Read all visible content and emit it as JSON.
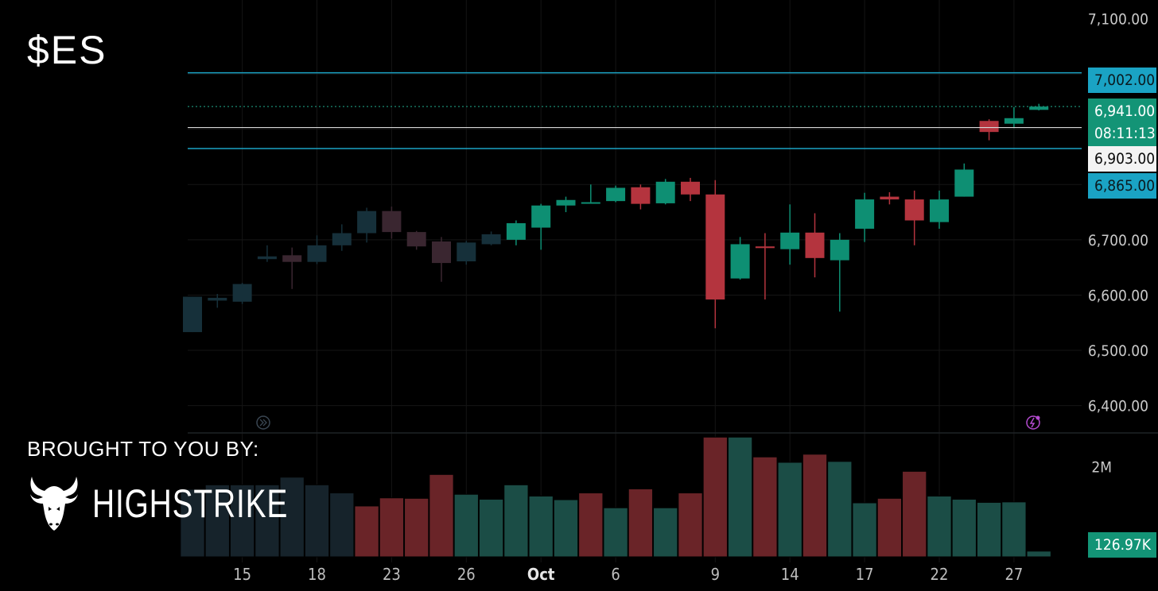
{
  "ticker": "$ES",
  "sponsor": {
    "brought_label": "BROUGHT TO YOU BY:",
    "brand_name": "HIGHSTRIKE"
  },
  "colors": {
    "up": "#0e8f73",
    "down": "#b4343e",
    "line_cyan": "#1aa3c4",
    "grid": "#151515"
  },
  "price_tags": {
    "level_high": "7,002.00",
    "last_price": "6,941.00",
    "countdown": "08:11:13",
    "level_white": "6,903.00",
    "level_low": "6,865.00",
    "volume_last": "126.97K"
  },
  "chart_data": [
    {
      "type": "candlestick",
      "title": "$ES",
      "y_axis": {
        "ticks": [
          "7,100.00",
          "6,700.00",
          "6,600.00",
          "6,500.00",
          "6,400.00"
        ],
        "tick_values": [
          7100,
          6700,
          6600,
          6500,
          6400
        ],
        "range": [
          6365,
          7105
        ],
        "position": "right"
      },
      "x_axis": {
        "labels": [
          "15",
          "18",
          "23",
          "26",
          "Oct",
          "6",
          "9",
          "14",
          "17",
          "22",
          "27"
        ],
        "label_index": [
          2,
          5,
          8,
          11,
          14,
          17,
          21,
          24,
          27,
          30,
          33
        ]
      },
      "levels": [
        {
          "value": 7002,
          "label": "7,002.00",
          "color": "cyan"
        },
        {
          "value": 6941,
          "label": "6,941.00",
          "color": "green",
          "style": "dotted"
        },
        {
          "value": 6903,
          "label": "6,903.00",
          "color": "white"
        },
        {
          "value": 6865,
          "label": "6,865.00",
          "color": "cyan"
        }
      ],
      "candles": [
        {
          "o": 6533,
          "h": 6597,
          "l": 6533,
          "c": 6597,
          "dim": true
        },
        {
          "o": 6590,
          "h": 6602,
          "l": 6577,
          "c": 6595,
          "dim": true
        },
        {
          "o": 6588,
          "h": 6622,
          "l": 6584,
          "c": 6620,
          "dim": true
        },
        {
          "o": 6665,
          "h": 6690,
          "l": 6660,
          "c": 6670,
          "dim": true
        },
        {
          "o": 6672,
          "h": 6686,
          "l": 6611,
          "c": 6660,
          "dim": true
        },
        {
          "o": 6660,
          "h": 6708,
          "l": 6656,
          "c": 6690,
          "dim": true
        },
        {
          "o": 6690,
          "h": 6728,
          "l": 6680,
          "c": 6712,
          "dim": true
        },
        {
          "o": 6712,
          "h": 6758,
          "l": 6695,
          "c": 6752,
          "dim": true
        },
        {
          "o": 6752,
          "h": 6760,
          "l": 6702,
          "c": 6714,
          "dim": true
        },
        {
          "o": 6714,
          "h": 6716,
          "l": 6682,
          "c": 6688,
          "dim": true
        },
        {
          "o": 6697,
          "h": 6705,
          "l": 6624,
          "c": 6658,
          "dim": true
        },
        {
          "o": 6661,
          "h": 6698,
          "l": 6655,
          "c": 6695,
          "dim": true
        },
        {
          "o": 6692,
          "h": 6715,
          "l": 6690,
          "c": 6710,
          "dim": true
        },
        {
          "o": 6700,
          "h": 6735,
          "l": 6690,
          "c": 6730
        },
        {
          "o": 6722,
          "h": 6765,
          "l": 6682,
          "c": 6762
        },
        {
          "o": 6762,
          "h": 6778,
          "l": 6750,
          "c": 6772
        },
        {
          "o": 6768,
          "h": 6800,
          "l": 6766,
          "c": 6768
        },
        {
          "o": 6770,
          "h": 6798,
          "l": 6768,
          "c": 6794
        },
        {
          "o": 6795,
          "h": 6800,
          "l": 6755,
          "c": 6765
        },
        {
          "o": 6766,
          "h": 6810,
          "l": 6764,
          "c": 6805
        },
        {
          "o": 6805,
          "h": 6812,
          "l": 6770,
          "c": 6782
        },
        {
          "o": 6782,
          "h": 6808,
          "l": 6540,
          "c": 6592
        },
        {
          "o": 6630,
          "h": 6705,
          "l": 6628,
          "c": 6692
        },
        {
          "o": 6688,
          "h": 6712,
          "l": 6592,
          "c": 6685
        },
        {
          "o": 6683,
          "h": 6764,
          "l": 6655,
          "c": 6713
        },
        {
          "o": 6713,
          "h": 6748,
          "l": 6632,
          "c": 6667
        },
        {
          "o": 6663,
          "h": 6712,
          "l": 6570,
          "c": 6700
        },
        {
          "o": 6720,
          "h": 6785,
          "l": 6696,
          "c": 6773
        },
        {
          "o": 6778,
          "h": 6786,
          "l": 6764,
          "c": 6773
        },
        {
          "o": 6773,
          "h": 6789,
          "l": 6690,
          "c": 6735
        },
        {
          "o": 6732,
          "h": 6789,
          "l": 6720,
          "c": 6773
        },
        {
          "o": 6778,
          "h": 6838,
          "l": 6778,
          "c": 6827
        },
        {
          "o": 6915,
          "h": 6918,
          "l": 6880,
          "c": 6895
        },
        {
          "o": 6910,
          "h": 6940,
          "l": 6902,
          "c": 6920
        },
        {
          "o": 6935,
          "h": 6946,
          "l": 6934,
          "c": 6941
        }
      ]
    },
    {
      "type": "bar",
      "title": "Volume",
      "y_axis": {
        "ticks": [
          "2M"
        ],
        "tick_values": [
          2000000
        ],
        "range": [
          0,
          2700000
        ]
      },
      "volume": [
        1500000,
        1600000,
        1600000,
        1600000,
        1770000,
        1600000,
        1420000,
        1130000,
        1310000,
        1300000,
        1830000,
        1390000,
        1280000,
        1600000,
        1350000,
        1270000,
        1420000,
        1090000,
        1510000,
        1090000,
        1420000,
        2660000,
        2660000,
        2220000,
        2100000,
        2280000,
        2120000,
        1200000,
        1300000,
        1900000,
        1350000,
        1280000,
        1210000,
        1220000,
        126970
      ],
      "volume_up": [
        true,
        true,
        true,
        true,
        true,
        true,
        true,
        false,
        false,
        false,
        false,
        true,
        true,
        true,
        true,
        true,
        false,
        true,
        false,
        true,
        false,
        false,
        true,
        false,
        true,
        false,
        true,
        true,
        false,
        false,
        true,
        true,
        true,
        true,
        true
      ]
    }
  ]
}
